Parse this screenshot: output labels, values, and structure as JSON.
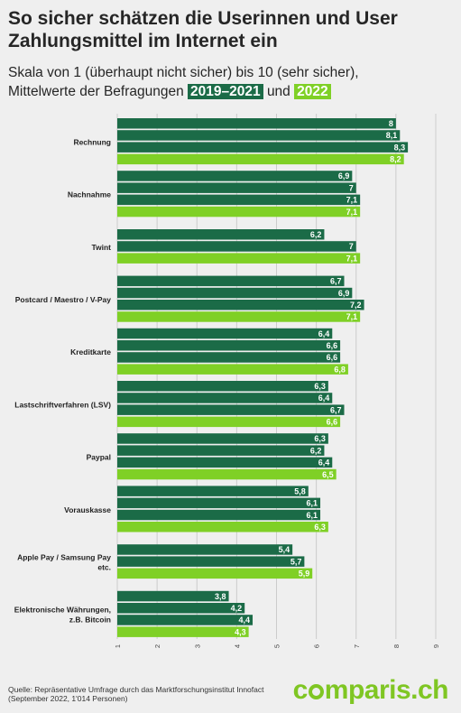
{
  "title_line1": "So sicher schätzen die Userinnen und User",
  "title_line2": "Zahlungsmittel im Internet ein",
  "subtitle_line1": "Skala von 1 (überhaupt nicht sicher) bis 10 (sehr sicher),",
  "subtitle_line2_prefix": "Mittelwerte der Befragungen",
  "legend_dark": "2019–2021",
  "legend_and": "und",
  "legend_light": "2022",
  "source_line1": "Quelle: Repräsentative Umfrage durch das Marktforschungsinstitut Innofact",
  "source_line2": "(September 2022, 1'014 Personen)",
  "logo_pre": "c",
  "logo_post": "mparis.ch",
  "colors": {
    "dark": "#1b6b47",
    "light": "#7fd026",
    "grid": "#cccccc"
  },
  "chart_data": {
    "type": "bar",
    "orientation": "horizontal",
    "xlim": [
      1,
      9
    ],
    "xticks": [
      "1",
      "2",
      "3",
      "4",
      "5",
      "6",
      "7",
      "8",
      "9"
    ],
    "grid": true,
    "categories": [
      {
        "label": [
          "Rechnung"
        ],
        "values": [
          8,
          8.1,
          8.3,
          8.2
        ],
        "labels": [
          "8",
          "8,1",
          "8,3",
          "8,2"
        ]
      },
      {
        "label": [
          "Nachnahme"
        ],
        "values": [
          6.9,
          7,
          7.1,
          7.1
        ],
        "labels": [
          "6,9",
          "7",
          "7,1",
          "7,1"
        ]
      },
      {
        "label": [
          "Twint"
        ],
        "values": [
          6.2,
          7,
          7.1
        ],
        "labels": [
          "6,2",
          "7",
          "7,1"
        ]
      },
      {
        "label": [
          "Postcard / Maestro / V-Pay"
        ],
        "values": [
          6.7,
          6.9,
          7.2,
          7.1
        ],
        "labels": [
          "6,7",
          "6,9",
          "7,2",
          "7,1"
        ]
      },
      {
        "label": [
          "Kreditkarte"
        ],
        "values": [
          6.4,
          6.6,
          6.6,
          6.8
        ],
        "labels": [
          "6,4",
          "6,6",
          "6,6",
          "6,8"
        ]
      },
      {
        "label": [
          "Lastschriftverfahren (LSV)"
        ],
        "values": [
          6.3,
          6.4,
          6.7,
          6.6
        ],
        "labels": [
          "6,3",
          "6,4",
          "6,7",
          "6,6"
        ]
      },
      {
        "label": [
          "Paypal"
        ],
        "values": [
          6.3,
          6.2,
          6.4,
          6.5
        ],
        "labels": [
          "6,3",
          "6,2",
          "6,4",
          "6,5"
        ]
      },
      {
        "label": [
          "Vorauskasse"
        ],
        "values": [
          5.8,
          6.1,
          6.1,
          6.3
        ],
        "labels": [
          "5,8",
          "6,1",
          "6,1",
          "6,3"
        ]
      },
      {
        "label": [
          "Apple Pay / Samsung Pay",
          "etc."
        ],
        "values": [
          5.4,
          5.7,
          5.9
        ],
        "labels": [
          "5,4",
          "5,7",
          "5,9"
        ]
      },
      {
        "label": [
          "Elektronische Währungen,",
          "z.B. Bitcoin"
        ],
        "values": [
          3.8,
          4.2,
          4.4,
          4.3
        ],
        "labels": [
          "3,8",
          "4,2",
          "4,4",
          "4,3"
        ]
      }
    ]
  }
}
